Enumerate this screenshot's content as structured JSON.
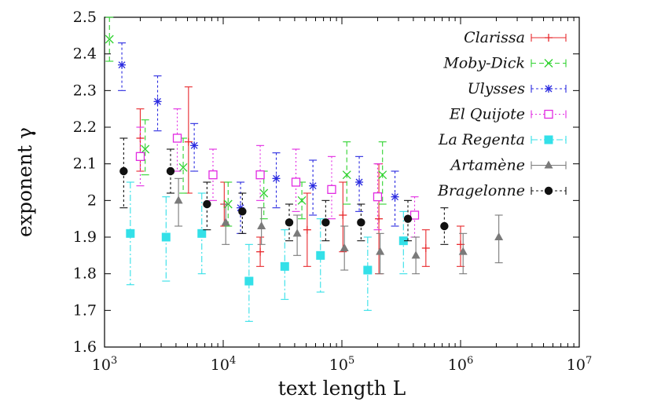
{
  "chart_data": {
    "type": "scatter",
    "xlabel": "text length L",
    "ylabel": "exponent γ",
    "x_scale": "log",
    "xlim": [
      1000,
      10000000
    ],
    "ylim": [
      1.6,
      2.5
    ],
    "x_ticks": [
      {
        "value": 1000,
        "base": "10",
        "exp": "3"
      },
      {
        "value": 10000,
        "base": "10",
        "exp": "4"
      },
      {
        "value": 100000,
        "base": "10",
        "exp": "5"
      },
      {
        "value": 1000000,
        "base": "10",
        "exp": "6"
      },
      {
        "value": 10000000,
        "base": "10",
        "exp": "7"
      }
    ],
    "y_ticks": [
      {
        "value": 1.6,
        "label": "1.6"
      },
      {
        "value": 1.7,
        "label": "1.7"
      },
      {
        "value": 1.8,
        "label": "1.8"
      },
      {
        "value": 1.9,
        "label": "1.9"
      },
      {
        "value": 2.0,
        "label": "2"
      },
      {
        "value": 2.1,
        "label": "2.1"
      },
      {
        "value": 2.2,
        "label": "2.2"
      },
      {
        "value": 2.3,
        "label": "2.3"
      },
      {
        "value": 2.4,
        "label": "2.4"
      },
      {
        "value": 2.5,
        "label": "2.5"
      }
    ],
    "legend_position": "top-right",
    "series": [
      {
        "name": "Clarissa",
        "color": "#e8282c",
        "marker": "plus",
        "dash": "",
        "points": [
          {
            "x": 2000,
            "y": 2.17,
            "lo": 2.08,
            "hi": 2.25
          },
          {
            "x": 5100,
            "y": 2.16,
            "lo": 2.02,
            "hi": 2.31
          },
          {
            "x": 10200,
            "y": 1.99,
            "lo": 1.93,
            "hi": 2.05
          },
          {
            "x": 20500,
            "y": 1.86,
            "lo": 1.82,
            "hi": 1.9
          },
          {
            "x": 51000,
            "y": 1.92,
            "lo": 1.82,
            "hi": 2.02
          },
          {
            "x": 102000,
            "y": 1.96,
            "lo": 1.86,
            "hi": 2.05
          },
          {
            "x": 205000,
            "y": 1.95,
            "lo": 1.8,
            "hi": 2.1
          },
          {
            "x": 510000,
            "y": 1.87,
            "lo": 1.82,
            "hi": 1.92
          },
          {
            "x": 1000000,
            "y": 1.88,
            "lo": 1.82,
            "hi": 1.93
          }
        ]
      },
      {
        "name": "Moby-Dick",
        "color": "#2fd22f",
        "marker": "cross",
        "dash": "6,4",
        "points": [
          {
            "x": 1100,
            "y": 2.44,
            "lo": 2.38,
            "hi": 2.5
          },
          {
            "x": 2200,
            "y": 2.14,
            "lo": 2.07,
            "hi": 2.22
          },
          {
            "x": 4600,
            "y": 2.09,
            "lo": 2.02,
            "hi": 2.17
          },
          {
            "x": 11000,
            "y": 1.99,
            "lo": 1.93,
            "hi": 2.05
          },
          {
            "x": 22000,
            "y": 2.02,
            "lo": 1.95,
            "hi": 2.08
          },
          {
            "x": 46000,
            "y": 2.0,
            "lo": 1.95,
            "hi": 2.05
          },
          {
            "x": 110000,
            "y": 2.07,
            "lo": 1.99,
            "hi": 2.16
          },
          {
            "x": 220000,
            "y": 2.07,
            "lo": 1.99,
            "hi": 2.16
          }
        ]
      },
      {
        "name": "Ulysses",
        "color": "#2a2ae0",
        "marker": "star",
        "dash": "3,3",
        "points": [
          {
            "x": 1400,
            "y": 2.37,
            "lo": 2.3,
            "hi": 2.43
          },
          {
            "x": 2800,
            "y": 2.27,
            "lo": 2.19,
            "hi": 2.34
          },
          {
            "x": 5700,
            "y": 2.15,
            "lo": 2.08,
            "hi": 2.21
          },
          {
            "x": 14000,
            "y": 1.98,
            "lo": 1.91,
            "hi": 2.05
          },
          {
            "x": 28000,
            "y": 2.06,
            "lo": 1.98,
            "hi": 2.13
          },
          {
            "x": 57000,
            "y": 2.04,
            "lo": 1.96,
            "hi": 2.11
          },
          {
            "x": 140000,
            "y": 2.05,
            "lo": 1.97,
            "hi": 2.12
          },
          {
            "x": 280000,
            "y": 2.01,
            "lo": 1.93,
            "hi": 2.08
          }
        ]
      },
      {
        "name": "El Quijote",
        "color": "#e22ae2",
        "marker": "square-open",
        "dash": "2,3",
        "points": [
          {
            "x": 2000,
            "y": 2.12,
            "lo": 2.04,
            "hi": 2.2
          },
          {
            "x": 4100,
            "y": 2.17,
            "lo": 2.08,
            "hi": 2.25
          },
          {
            "x": 8200,
            "y": 2.07,
            "lo": 2.0,
            "hi": 2.14
          },
          {
            "x": 20500,
            "y": 2.07,
            "lo": 2.0,
            "hi": 2.15
          },
          {
            "x": 41000,
            "y": 2.05,
            "lo": 1.97,
            "hi": 2.14
          },
          {
            "x": 82000,
            "y": 2.03,
            "lo": 1.95,
            "hi": 2.12
          },
          {
            "x": 200000,
            "y": 2.01,
            "lo": 1.92,
            "hi": 2.1
          },
          {
            "x": 410000,
            "y": 1.96,
            "lo": 1.9,
            "hi": 2.01
          }
        ]
      },
      {
        "name": "La Regenta",
        "color": "#33e0e8",
        "marker": "square-filled",
        "dash": "8,3,2,3",
        "points": [
          {
            "x": 1650,
            "y": 1.91,
            "lo": 1.77,
            "hi": 2.05
          },
          {
            "x": 3300,
            "y": 1.9,
            "lo": 1.78,
            "hi": 2.01
          },
          {
            "x": 6600,
            "y": 1.91,
            "lo": 1.8,
            "hi": 2.02
          },
          {
            "x": 16500,
            "y": 1.78,
            "lo": 1.67,
            "hi": 1.88
          },
          {
            "x": 33000,
            "y": 1.82,
            "lo": 1.73,
            "hi": 1.92
          },
          {
            "x": 66000,
            "y": 1.85,
            "lo": 1.75,
            "hi": 1.95
          },
          {
            "x": 165000,
            "y": 1.81,
            "lo": 1.7,
            "hi": 1.9
          },
          {
            "x": 330000,
            "y": 1.89,
            "lo": 1.8,
            "hi": 1.97
          }
        ]
      },
      {
        "name": "Artamène",
        "color": "#7a7a7a",
        "marker": "triangle",
        "dash": "",
        "points": [
          {
            "x": 4200,
            "y": 2.0,
            "lo": 1.93,
            "hi": 2.06
          },
          {
            "x": 10500,
            "y": 1.94,
            "lo": 1.88,
            "hi": 1.99
          },
          {
            "x": 21000,
            "y": 1.93,
            "lo": 1.88,
            "hi": 1.98
          },
          {
            "x": 42000,
            "y": 1.91,
            "lo": 1.85,
            "hi": 1.96
          },
          {
            "x": 105000,
            "y": 1.87,
            "lo": 1.81,
            "hi": 1.93
          },
          {
            "x": 210000,
            "y": 1.86,
            "lo": 1.8,
            "hi": 1.91
          },
          {
            "x": 420000,
            "y": 1.85,
            "lo": 1.8,
            "hi": 1.9
          },
          {
            "x": 1050000,
            "y": 1.86,
            "lo": 1.8,
            "hi": 1.91
          },
          {
            "x": 2100000,
            "y": 1.9,
            "lo": 1.83,
            "hi": 1.96
          }
        ]
      },
      {
        "name": "Bragelonne",
        "color": "#111111",
        "marker": "circle",
        "dash": "3,3",
        "points": [
          {
            "x": 1450,
            "y": 2.08,
            "lo": 1.98,
            "hi": 2.17
          },
          {
            "x": 3600,
            "y": 2.08,
            "lo": 2.02,
            "hi": 2.14
          },
          {
            "x": 7300,
            "y": 1.99,
            "lo": 1.92,
            "hi": 2.05
          },
          {
            "x": 14500,
            "y": 1.97,
            "lo": 1.91,
            "hi": 2.02
          },
          {
            "x": 36000,
            "y": 1.94,
            "lo": 1.89,
            "hi": 1.99
          },
          {
            "x": 73000,
            "y": 1.94,
            "lo": 1.89,
            "hi": 2.0
          },
          {
            "x": 145000,
            "y": 1.94,
            "lo": 1.89,
            "hi": 1.99
          },
          {
            "x": 360000,
            "y": 1.95,
            "lo": 1.89,
            "hi": 2.0
          },
          {
            "x": 730000,
            "y": 1.93,
            "lo": 1.88,
            "hi": 1.98
          }
        ]
      }
    ]
  }
}
